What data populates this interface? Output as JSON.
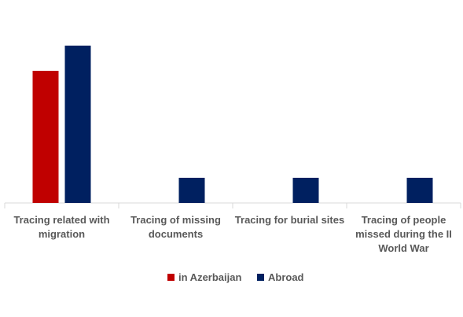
{
  "chart_data": {
    "type": "bar",
    "categories": [
      "Tracing related with migration",
      "Tracing of missing documents",
      "Tracing for burial sites",
      "Tracing of people missed during the II World War"
    ],
    "series": [
      {
        "name": "in Azerbaijan",
        "color": "#c00000",
        "values": [
          21,
          null,
          null,
          null
        ]
      },
      {
        "name": "Abroad",
        "color": "#002060",
        "values": [
          25,
          4,
          4,
          4
        ]
      }
    ],
    "ylim": [
      0,
      26
    ],
    "grid": false,
    "legend": "bottom"
  }
}
